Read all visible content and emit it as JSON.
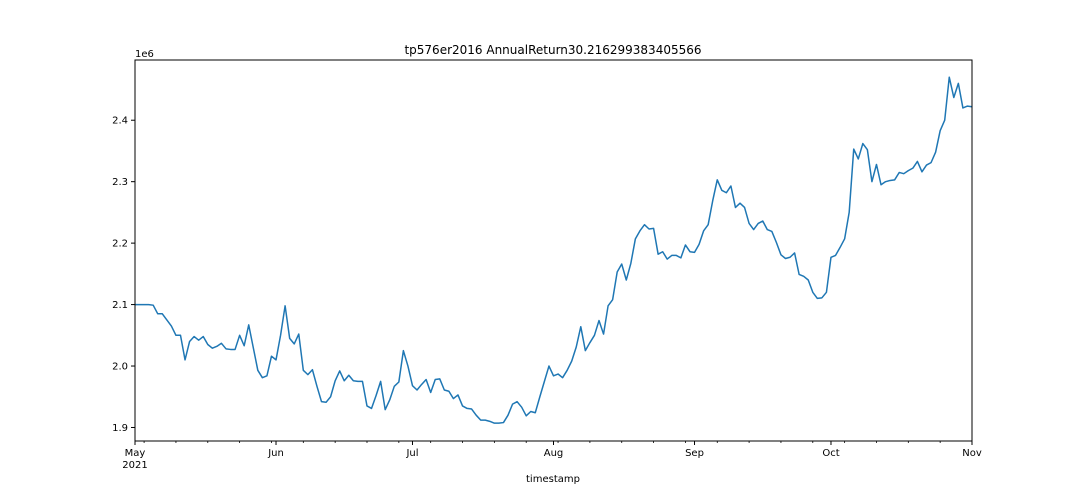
{
  "chart_data": {
    "type": "line",
    "title": "tp576er2016 AnnualReturn30.216299383405566",
    "xlabel": "timestamp",
    "ylabel": "",
    "scale_label": "1e6",
    "year_label": "2021",
    "xlim": [
      "2021-05-01",
      "2021-11-01"
    ],
    "ylim": [
      1.878,
      2.498
    ],
    "y_ticks": [
      {
        "value": 1.9,
        "label": "1.9"
      },
      {
        "value": 2.0,
        "label": "2.0"
      },
      {
        "value": 2.1,
        "label": "2.1"
      },
      {
        "value": 2.2,
        "label": "2.2"
      },
      {
        "value": 2.3,
        "label": "2.3"
      },
      {
        "value": 2.4,
        "label": "2.4"
      }
    ],
    "x_ticks": [
      {
        "date": "2021-05-01",
        "label": "May"
      },
      {
        "date": "2021-06-01",
        "label": "Jun"
      },
      {
        "date": "2021-07-01",
        "label": "Jul"
      },
      {
        "date": "2021-08-01",
        "label": "Aug"
      },
      {
        "date": "2021-09-01",
        "label": "Sep"
      },
      {
        "date": "2021-10-01",
        "label": "Oct"
      },
      {
        "date": "2021-11-01",
        "label": "Nov"
      }
    ],
    "grid": false,
    "line_color": "#1f77b4",
    "series": [
      {
        "x": [
          "2021-05-01",
          "2021-05-02",
          "2021-05-03",
          "2021-05-04",
          "2021-05-05",
          "2021-05-06",
          "2021-05-07",
          "2021-05-08",
          "2021-05-09",
          "2021-05-10",
          "2021-05-11",
          "2021-05-12",
          "2021-05-13",
          "2021-05-14",
          "2021-05-15",
          "2021-05-16",
          "2021-05-17",
          "2021-05-18",
          "2021-05-19",
          "2021-05-20",
          "2021-05-21",
          "2021-05-22",
          "2021-05-23",
          "2021-05-24",
          "2021-05-25",
          "2021-05-26",
          "2021-05-27",
          "2021-05-28",
          "2021-05-29",
          "2021-05-30",
          "2021-05-31",
          "2021-06-01",
          "2021-06-02",
          "2021-06-03",
          "2021-06-04",
          "2021-06-05",
          "2021-06-06",
          "2021-06-07",
          "2021-06-08",
          "2021-06-09",
          "2021-06-10",
          "2021-06-11",
          "2021-06-12",
          "2021-06-13",
          "2021-06-14",
          "2021-06-15",
          "2021-06-16",
          "2021-06-17",
          "2021-06-18",
          "2021-06-19",
          "2021-06-20",
          "2021-06-21",
          "2021-06-22",
          "2021-06-23",
          "2021-06-24",
          "2021-06-25",
          "2021-06-26",
          "2021-06-27",
          "2021-06-28",
          "2021-06-29",
          "2021-06-30",
          "2021-07-01",
          "2021-07-02",
          "2021-07-03",
          "2021-07-04",
          "2021-07-05",
          "2021-07-06",
          "2021-07-07",
          "2021-07-08",
          "2021-07-09",
          "2021-07-10",
          "2021-07-11",
          "2021-07-12",
          "2021-07-13",
          "2021-07-14",
          "2021-07-15",
          "2021-07-16",
          "2021-07-17",
          "2021-07-18",
          "2021-07-19",
          "2021-07-20",
          "2021-07-21",
          "2021-07-22",
          "2021-07-23",
          "2021-07-24",
          "2021-07-25",
          "2021-07-26",
          "2021-07-27",
          "2021-07-28",
          "2021-07-29",
          "2021-07-30",
          "2021-07-31",
          "2021-08-01",
          "2021-08-02",
          "2021-08-03",
          "2021-08-04",
          "2021-08-05",
          "2021-08-06",
          "2021-08-07",
          "2021-08-08",
          "2021-08-09",
          "2021-08-10",
          "2021-08-11",
          "2021-08-12",
          "2021-08-13",
          "2021-08-14",
          "2021-08-15",
          "2021-08-16",
          "2021-08-17",
          "2021-08-18",
          "2021-08-19",
          "2021-08-20",
          "2021-08-21",
          "2021-08-22",
          "2021-08-23",
          "2021-08-24",
          "2021-08-25",
          "2021-08-26",
          "2021-08-27",
          "2021-08-28",
          "2021-08-29",
          "2021-08-30",
          "2021-08-31",
          "2021-09-01",
          "2021-09-02",
          "2021-09-03",
          "2021-09-04",
          "2021-09-05",
          "2021-09-06",
          "2021-09-07",
          "2021-09-08",
          "2021-09-09",
          "2021-09-10",
          "2021-09-11",
          "2021-09-12",
          "2021-09-13",
          "2021-09-14",
          "2021-09-15",
          "2021-09-16",
          "2021-09-17",
          "2021-09-18",
          "2021-09-19",
          "2021-09-20",
          "2021-09-21",
          "2021-09-22",
          "2021-09-23",
          "2021-09-24",
          "2021-09-25",
          "2021-09-26",
          "2021-09-27",
          "2021-09-28",
          "2021-09-29",
          "2021-09-30",
          "2021-10-01",
          "2021-10-02",
          "2021-10-03",
          "2021-10-04",
          "2021-10-05",
          "2021-10-06",
          "2021-10-07",
          "2021-10-08",
          "2021-10-09",
          "2021-10-10",
          "2021-10-11",
          "2021-10-12",
          "2021-10-13",
          "2021-10-14",
          "2021-10-15",
          "2021-10-16",
          "2021-10-17",
          "2021-10-18",
          "2021-10-19",
          "2021-10-20",
          "2021-10-21",
          "2021-10-22",
          "2021-10-23",
          "2021-10-24",
          "2021-10-25",
          "2021-10-26",
          "2021-10-27",
          "2021-10-28",
          "2021-10-29",
          "2021-10-30",
          "2021-10-31",
          "2021-11-01"
        ],
        "y": [
          2.1,
          2.1,
          2.1,
          2.1,
          2.099,
          2.085,
          2.085,
          2.075,
          2.065,
          2.05,
          2.05,
          2.01,
          2.04,
          2.048,
          2.042,
          2.048,
          2.035,
          2.029,
          2.032,
          2.037,
          2.028,
          2.027,
          2.027,
          2.05,
          2.033,
          2.067,
          2.03,
          1.993,
          1.981,
          1.984,
          2.016,
          2.01,
          2.05,
          2.098,
          2.045,
          2.036,
          2.052,
          1.993,
          1.986,
          1.994,
          1.967,
          1.942,
          1.941,
          1.95,
          1.976,
          1.992,
          1.976,
          1.985,
          1.976,
          1.975,
          1.975,
          1.935,
          1.931,
          1.952,
          1.975,
          1.929,
          1.945,
          1.967,
          1.974,
          2.025,
          2.0,
          1.968,
          1.961,
          1.97,
          1.978,
          1.957,
          1.978,
          1.979,
          1.961,
          1.959,
          1.947,
          1.953,
          1.935,
          1.931,
          1.93,
          1.92,
          1.912,
          1.912,
          1.91,
          1.907,
          1.907,
          1.908,
          1.92,
          1.938,
          1.942,
          1.933,
          1.919,
          1.926,
          1.924,
          1.95,
          1.975,
          2.0,
          1.984,
          1.987,
          1.981,
          1.993,
          2.008,
          2.031,
          2.064,
          2.025,
          2.038,
          2.05,
          2.074,
          2.052,
          2.098,
          2.108,
          2.153,
          2.166,
          2.14,
          2.167,
          2.207,
          2.22,
          2.23,
          2.223,
          2.224,
          2.182,
          2.186,
          2.174,
          2.18,
          2.18,
          2.176,
          2.197,
          2.186,
          2.185,
          2.198,
          2.22,
          2.23,
          2.269,
          2.303,
          2.286,
          2.282,
          2.293,
          2.258,
          2.265,
          2.258,
          2.232,
          2.222,
          2.232,
          2.236,
          2.222,
          2.219,
          2.201,
          2.181,
          2.175,
          2.177,
          2.184,
          2.149,
          2.146,
          2.14,
          2.12,
          2.11,
          2.111,
          2.12,
          2.177,
          2.18,
          2.193,
          2.207,
          2.25,
          2.353,
          2.337,
          2.362,
          2.352,
          2.3,
          2.328,
          2.295,
          2.3,
          2.302,
          2.303,
          2.315,
          2.313,
          2.318,
          2.322,
          2.333,
          2.316,
          2.327,
          2.331,
          2.348,
          2.383,
          2.4,
          2.47,
          2.437,
          2.46,
          2.42,
          2.423,
          2.422
        ]
      }
    ]
  }
}
